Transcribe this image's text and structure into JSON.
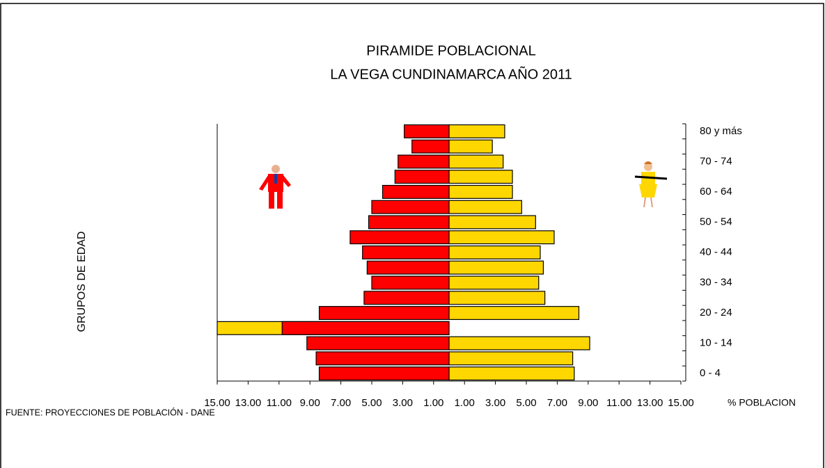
{
  "chart_data": {
    "type": "pyramid",
    "title": "PIRAMIDE POBLACIONAL",
    "subtitle": "LA VEGA CUNDINAMARCA AÑO  2011",
    "y_label": "GRUPOS DE EDAD",
    "x_label": "%  POBLACION",
    "source": "FUENTE: PROYECCIONES DE POBLACIÓN  - DANE",
    "categories": [
      "0 - 4",
      null,
      "10 - 14",
      null,
      "20 - 24",
      null,
      "30 - 34",
      null,
      "40 - 44",
      null,
      "50 - 54",
      null,
      "60 - 64",
      null,
      "70 - 74",
      null,
      "80 y más"
    ],
    "series": [
      {
        "color": "#ffd700",
        "values": [
          8.1,
          8.0,
          9.1,
          -15,
          8.4,
          6.2,
          5.8,
          6.1,
          5.9,
          6.8,
          5.6,
          4.7,
          4.1,
          4.1,
          3.5,
          2.8,
          3.6
        ]
      },
      {
        "color": "#ff0000",
        "values": [
          -8.4,
          -8.6,
          -9.2,
          -10.8,
          -8.4,
          -5.5,
          -5.0,
          -5.3,
          -5.6,
          -6.4,
          -5.2,
          -5.0,
          -4.3,
          -3.5,
          -3.3,
          -2.4,
          -2.9
        ]
      }
    ],
    "xlim": [
      -15,
      15
    ],
    "xticks": [
      {
        "value": -15,
        "label": "15.00"
      },
      {
        "value": -13,
        "label": "13.00"
      },
      {
        "value": -11,
        "label": "11.00"
      },
      {
        "value": -9,
        "label": "9.00"
      },
      {
        "value": -7,
        "label": "7.00"
      },
      {
        "value": -5,
        "label": "5.00"
      },
      {
        "value": -3,
        "label": "3.00"
      },
      {
        "value": -1,
        "label": "1.00"
      },
      {
        "value": 1,
        "label": "1.00"
      },
      {
        "value": 3,
        "label": "3.00"
      },
      {
        "value": 5,
        "label": "5.00"
      },
      {
        "value": 7,
        "label": "7.00"
      },
      {
        "value": 9,
        "label": "9.00"
      },
      {
        "value": 11,
        "label": "11.00"
      },
      {
        "value": 13,
        "label": "13.00"
      },
      {
        "value": 15,
        "label": "15.00"
      }
    ]
  }
}
